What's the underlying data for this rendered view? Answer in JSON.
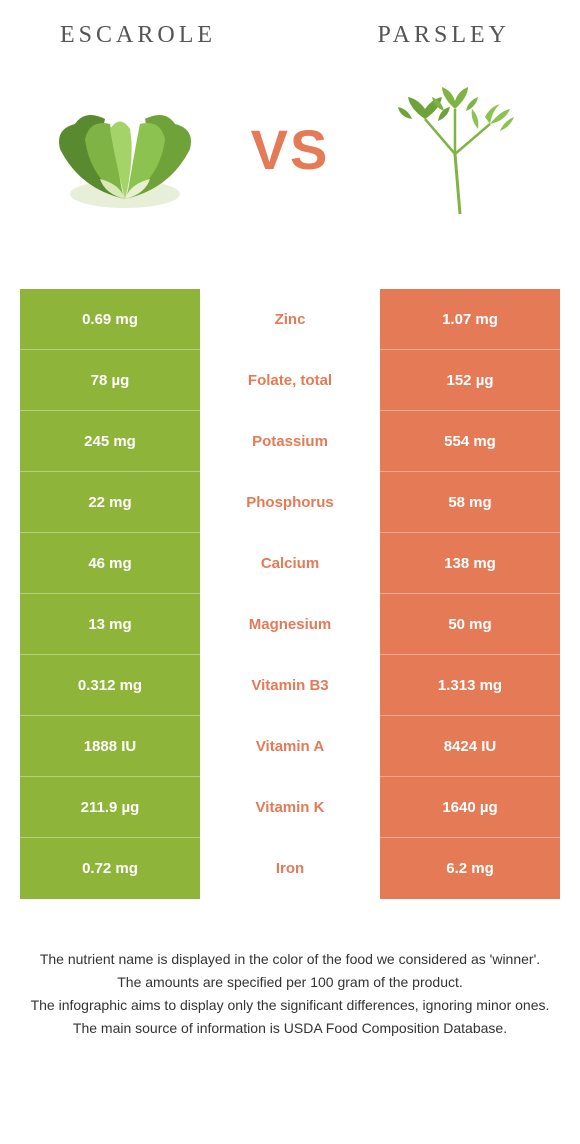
{
  "header": {
    "left": "Escarole",
    "right": "Parsley"
  },
  "vs": "VS",
  "colors": {
    "left": "#8fb43a",
    "right": "#e47a56",
    "winner_left": "#8fb43a",
    "winner_right": "#e47a56"
  },
  "rows": [
    {
      "left": "0.69 mg",
      "label": "Zinc",
      "right": "1.07 mg",
      "winner": "right"
    },
    {
      "left": "78 µg",
      "label": "Folate, total",
      "right": "152 µg",
      "winner": "right"
    },
    {
      "left": "245 mg",
      "label": "Potassium",
      "right": "554 mg",
      "winner": "right"
    },
    {
      "left": "22 mg",
      "label": "Phosphorus",
      "right": "58 mg",
      "winner": "right"
    },
    {
      "left": "46 mg",
      "label": "Calcium",
      "right": "138 mg",
      "winner": "right"
    },
    {
      "left": "13 mg",
      "label": "Magnesium",
      "right": "50 mg",
      "winner": "right"
    },
    {
      "left": "0.312 mg",
      "label": "Vitamin B3",
      "right": "1.313 mg",
      "winner": "right"
    },
    {
      "left": "1888 IU",
      "label": "Vitamin A",
      "right": "8424 IU",
      "winner": "right"
    },
    {
      "left": "211.9 µg",
      "label": "Vitamin K",
      "right": "1640 µg",
      "winner": "right"
    },
    {
      "left": "0.72 mg",
      "label": "Iron",
      "right": "6.2 mg",
      "winner": "right"
    }
  ],
  "footer": [
    "The nutrient name is displayed in the color of the food we considered as 'winner'.",
    "The amounts are specified per 100 gram of the product.",
    "The infographic aims to display only the significant differences, ignoring minor ones.",
    "The main source of information is USDA Food Composition Database."
  ]
}
